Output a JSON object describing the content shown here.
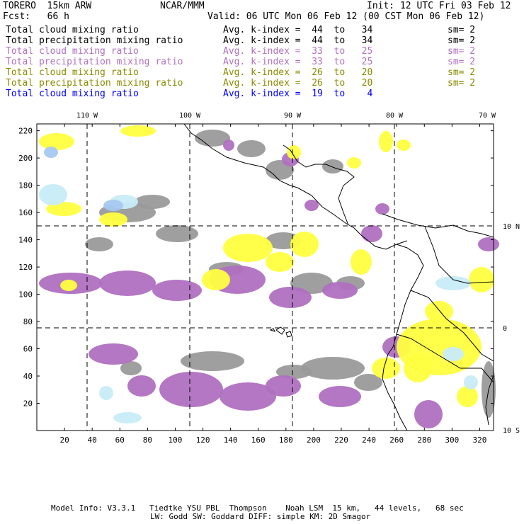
{
  "header": {
    "model": "TORERO  15km ARW",
    "org": "NCAR/MMM",
    "init": "Init: 12 UTC Fri 03 Feb 12",
    "fcst": "Fcst:   66 h",
    "valid": "Valid: 06 UTC Mon 06 Feb 12 (00 CST Mon 06 Feb 12)"
  },
  "legend": [
    {
      "field": "Total cloud mixing ratio",
      "kindex": "Avg. k-index =  44  to   34",
      "sm": "sm= 2",
      "color": "#000000"
    },
    {
      "field": "Total precipitation mixing ratio",
      "kindex": "Avg. k-index =  44  to   34",
      "sm": "sm= 2",
      "color": "#000000"
    },
    {
      "field": "Total cloud mixing ratio",
      "kindex": "Avg. k-index =  33  to   25",
      "sm": "sm= 2",
      "color": "#b070c0"
    },
    {
      "field": "Total precipitation mixing ratio",
      "kindex": "Avg. k-index =  33  to   25",
      "sm": "sm= 2",
      "color": "#b070c0"
    },
    {
      "field": "Total cloud mixing ratio",
      "kindex": "Avg. k-index =  26  to   20",
      "sm": "sm= 2",
      "color": "#8a8a00"
    },
    {
      "field": "Total precipitation mixing ratio",
      "kindex": "Avg. k-index =  26  to   20",
      "sm": "sm= 2",
      "color": "#8a8a00"
    },
    {
      "field": "Total cloud mixing ratio",
      "kindex": "Avg. k-index =  19  to    4",
      "sm": "",
      "color": "#0000ff"
    }
  ],
  "map": {
    "lon_labels": [
      "110 W",
      "100 W",
      "90 W",
      "80 W",
      "70 W"
    ],
    "lat_labels": [
      "10 N",
      "0",
      "10 S"
    ],
    "x_ticks": [
      "20",
      "40",
      "60",
      "80",
      "100",
      "120",
      "140",
      "160",
      "180",
      "200",
      "220",
      "240",
      "260",
      "280",
      "300",
      "320"
    ],
    "y_ticks": [
      "20",
      "40",
      "60",
      "80",
      "100",
      "120",
      "140",
      "160",
      "180",
      "200",
      "220"
    ],
    "colors": {
      "gray": "#9a9a9a",
      "purple": "#b070c0",
      "yellow": "#ffff40",
      "lightblue": "#c8ecf8",
      "blue": "#a8c8f0"
    }
  },
  "footer": {
    "line1": "Model Info: V3.3.1   Tiedtke YSU PBL  Thompson    Noah LSM  15 km,   44 levels,   68 sec",
    "line2": "LW: Godd SW: Goddard DIFF: simple KM: 2D Smagor"
  }
}
